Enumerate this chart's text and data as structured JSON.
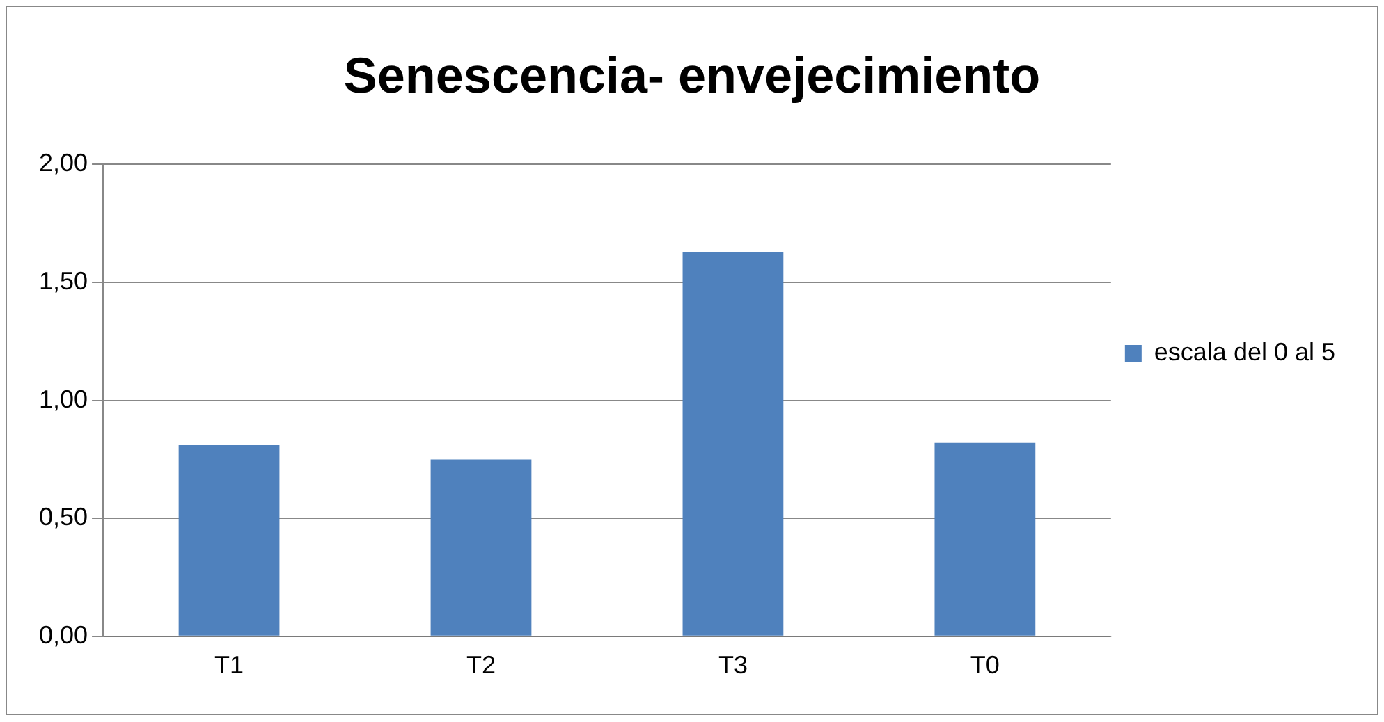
{
  "chart_data": {
    "type": "bar",
    "title": "Senescencia- envejecimiento",
    "categories": [
      "T1",
      "T2",
      "T3",
      "T0"
    ],
    "series": [
      {
        "name": "escala del 0 al 5",
        "color": "#4f81bd",
        "values": [
          0.81,
          0.75,
          1.63,
          0.82
        ]
      }
    ],
    "ylim": [
      0,
      2
    ],
    "yticks": [
      {
        "value": 0,
        "label": "0,00"
      },
      {
        "value": 0.5,
        "label": "0,50"
      },
      {
        "value": 1,
        "label": "1,00"
      },
      {
        "value": 1.5,
        "label": "1,50"
      },
      {
        "value": 2,
        "label": "2,00"
      }
    ],
    "grid": "y",
    "legend": "right"
  }
}
